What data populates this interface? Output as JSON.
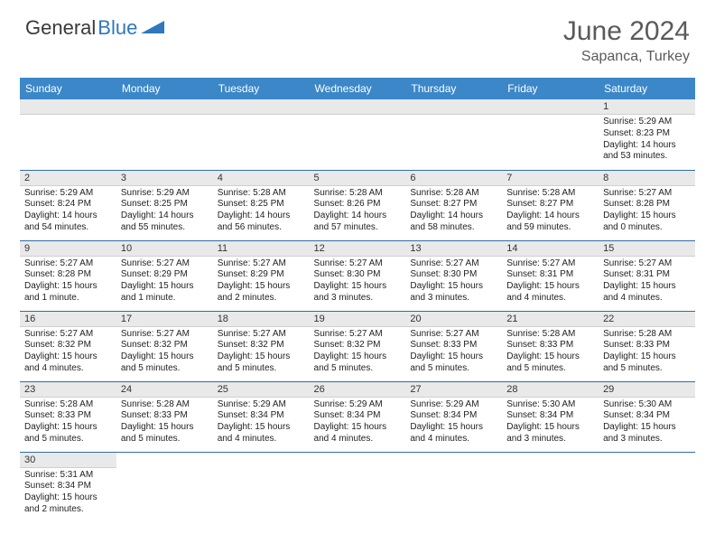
{
  "logo": {
    "text1": "General",
    "text2": "Blue",
    "triangle_color": "#2f78bd"
  },
  "header": {
    "month_year": "June 2024",
    "location": "Sapanca, Turkey"
  },
  "colors": {
    "header_bg": "#3b87c8",
    "header_text": "#ffffff",
    "daynum_bg": "#e9e9e9",
    "row_divider": "#2f6da8",
    "body_text": "#222222",
    "title_text": "#5a5a5a"
  },
  "days_of_week": [
    "Sunday",
    "Monday",
    "Tuesday",
    "Wednesday",
    "Thursday",
    "Friday",
    "Saturday"
  ],
  "weeks": [
    [
      null,
      null,
      null,
      null,
      null,
      null,
      {
        "n": "1",
        "sr": "Sunrise: 5:29 AM",
        "ss": "Sunset: 8:23 PM",
        "dl": "Daylight: 14 hours and 53 minutes."
      }
    ],
    [
      {
        "n": "2",
        "sr": "Sunrise: 5:29 AM",
        "ss": "Sunset: 8:24 PM",
        "dl": "Daylight: 14 hours and 54 minutes."
      },
      {
        "n": "3",
        "sr": "Sunrise: 5:29 AM",
        "ss": "Sunset: 8:25 PM",
        "dl": "Daylight: 14 hours and 55 minutes."
      },
      {
        "n": "4",
        "sr": "Sunrise: 5:28 AM",
        "ss": "Sunset: 8:25 PM",
        "dl": "Daylight: 14 hours and 56 minutes."
      },
      {
        "n": "5",
        "sr": "Sunrise: 5:28 AM",
        "ss": "Sunset: 8:26 PM",
        "dl": "Daylight: 14 hours and 57 minutes."
      },
      {
        "n": "6",
        "sr": "Sunrise: 5:28 AM",
        "ss": "Sunset: 8:27 PM",
        "dl": "Daylight: 14 hours and 58 minutes."
      },
      {
        "n": "7",
        "sr": "Sunrise: 5:28 AM",
        "ss": "Sunset: 8:27 PM",
        "dl": "Daylight: 14 hours and 59 minutes."
      },
      {
        "n": "8",
        "sr": "Sunrise: 5:27 AM",
        "ss": "Sunset: 8:28 PM",
        "dl": "Daylight: 15 hours and 0 minutes."
      }
    ],
    [
      {
        "n": "9",
        "sr": "Sunrise: 5:27 AM",
        "ss": "Sunset: 8:28 PM",
        "dl": "Daylight: 15 hours and 1 minute."
      },
      {
        "n": "10",
        "sr": "Sunrise: 5:27 AM",
        "ss": "Sunset: 8:29 PM",
        "dl": "Daylight: 15 hours and 1 minute."
      },
      {
        "n": "11",
        "sr": "Sunrise: 5:27 AM",
        "ss": "Sunset: 8:29 PM",
        "dl": "Daylight: 15 hours and 2 minutes."
      },
      {
        "n": "12",
        "sr": "Sunrise: 5:27 AM",
        "ss": "Sunset: 8:30 PM",
        "dl": "Daylight: 15 hours and 3 minutes."
      },
      {
        "n": "13",
        "sr": "Sunrise: 5:27 AM",
        "ss": "Sunset: 8:30 PM",
        "dl": "Daylight: 15 hours and 3 minutes."
      },
      {
        "n": "14",
        "sr": "Sunrise: 5:27 AM",
        "ss": "Sunset: 8:31 PM",
        "dl": "Daylight: 15 hours and 4 minutes."
      },
      {
        "n": "15",
        "sr": "Sunrise: 5:27 AM",
        "ss": "Sunset: 8:31 PM",
        "dl": "Daylight: 15 hours and 4 minutes."
      }
    ],
    [
      {
        "n": "16",
        "sr": "Sunrise: 5:27 AM",
        "ss": "Sunset: 8:32 PM",
        "dl": "Daylight: 15 hours and 4 minutes."
      },
      {
        "n": "17",
        "sr": "Sunrise: 5:27 AM",
        "ss": "Sunset: 8:32 PM",
        "dl": "Daylight: 15 hours and 5 minutes."
      },
      {
        "n": "18",
        "sr": "Sunrise: 5:27 AM",
        "ss": "Sunset: 8:32 PM",
        "dl": "Daylight: 15 hours and 5 minutes."
      },
      {
        "n": "19",
        "sr": "Sunrise: 5:27 AM",
        "ss": "Sunset: 8:32 PM",
        "dl": "Daylight: 15 hours and 5 minutes."
      },
      {
        "n": "20",
        "sr": "Sunrise: 5:27 AM",
        "ss": "Sunset: 8:33 PM",
        "dl": "Daylight: 15 hours and 5 minutes."
      },
      {
        "n": "21",
        "sr": "Sunrise: 5:28 AM",
        "ss": "Sunset: 8:33 PM",
        "dl": "Daylight: 15 hours and 5 minutes."
      },
      {
        "n": "22",
        "sr": "Sunrise: 5:28 AM",
        "ss": "Sunset: 8:33 PM",
        "dl": "Daylight: 15 hours and 5 minutes."
      }
    ],
    [
      {
        "n": "23",
        "sr": "Sunrise: 5:28 AM",
        "ss": "Sunset: 8:33 PM",
        "dl": "Daylight: 15 hours and 5 minutes."
      },
      {
        "n": "24",
        "sr": "Sunrise: 5:28 AM",
        "ss": "Sunset: 8:33 PM",
        "dl": "Daylight: 15 hours and 5 minutes."
      },
      {
        "n": "25",
        "sr": "Sunrise: 5:29 AM",
        "ss": "Sunset: 8:34 PM",
        "dl": "Daylight: 15 hours and 4 minutes."
      },
      {
        "n": "26",
        "sr": "Sunrise: 5:29 AM",
        "ss": "Sunset: 8:34 PM",
        "dl": "Daylight: 15 hours and 4 minutes."
      },
      {
        "n": "27",
        "sr": "Sunrise: 5:29 AM",
        "ss": "Sunset: 8:34 PM",
        "dl": "Daylight: 15 hours and 4 minutes."
      },
      {
        "n": "28",
        "sr": "Sunrise: 5:30 AM",
        "ss": "Sunset: 8:34 PM",
        "dl": "Daylight: 15 hours and 3 minutes."
      },
      {
        "n": "29",
        "sr": "Sunrise: 5:30 AM",
        "ss": "Sunset: 8:34 PM",
        "dl": "Daylight: 15 hours and 3 minutes."
      }
    ],
    [
      {
        "n": "30",
        "sr": "Sunrise: 5:31 AM",
        "ss": "Sunset: 8:34 PM",
        "dl": "Daylight: 15 hours and 2 minutes."
      },
      null,
      null,
      null,
      null,
      null,
      null
    ]
  ]
}
